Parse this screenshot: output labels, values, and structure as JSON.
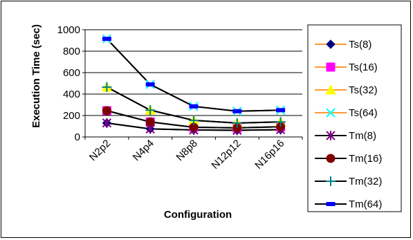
{
  "chart_data": {
    "type": "line",
    "title": "",
    "xlabel": "Configuration",
    "ylabel": "Execution Time (sec)",
    "ylim": [
      0,
      1000
    ],
    "yticks": [
      0,
      200,
      400,
      600,
      800,
      1000
    ],
    "grid": "horizontal",
    "legend_position": "right",
    "categories": [
      "N2p2",
      "N4p4",
      "N8p8",
      "N12p12",
      "N16p16"
    ],
    "series": [
      {
        "name": "Ts(8)",
        "values": [
          130,
          75,
          65,
          62,
          68
        ],
        "color": "#000080",
        "marker": "diamond"
      },
      {
        "name": "Ts(16)",
        "values": [
          245,
          140,
          90,
          85,
          95
        ],
        "color": "#FF00FF",
        "marker": "square"
      },
      {
        "name": "Ts(32)",
        "values": [
          465,
          250,
          155,
          130,
          140
        ],
        "color": "#FFFF00",
        "marker": "triangle"
      },
      {
        "name": "Ts(64)",
        "values": [
          915,
          490,
          285,
          240,
          250
        ],
        "color": "#00FFFF",
        "marker": "x"
      },
      {
        "name": "Tm(8)",
        "values": [
          130,
          75,
          65,
          62,
          68
        ],
        "color": "#800080",
        "marker": "star"
      },
      {
        "name": "Tm(16)",
        "values": [
          245,
          140,
          90,
          85,
          95
        ],
        "color": "#800000",
        "marker": "circle"
      },
      {
        "name": "Tm(32)",
        "values": [
          465,
          250,
          155,
          130,
          140
        ],
        "color": "#008080",
        "marker": "plus"
      },
      {
        "name": "Tm(64)",
        "values": [
          915,
          490,
          285,
          240,
          250
        ],
        "color": "#0000FF",
        "marker": "dash"
      }
    ]
  }
}
